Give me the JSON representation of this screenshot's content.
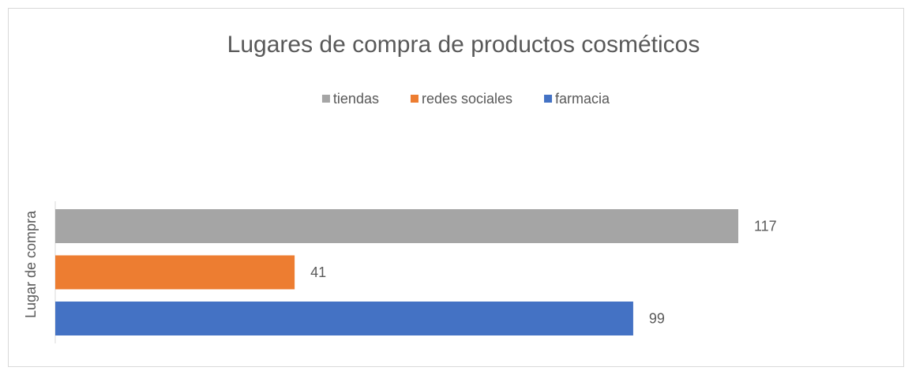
{
  "chart_data": {
    "type": "bar",
    "orientation": "horizontal",
    "title": "Lugares de compra de productos cosméticos",
    "y_label": "Lugar de compra",
    "categories": [
      null
    ],
    "series": [
      {
        "name": "tiendas",
        "color": "#a5a5a5",
        "values": [
          117
        ]
      },
      {
        "name": "redes sociales",
        "color": "#ed7d31",
        "values": [
          41
        ]
      },
      {
        "name": "farmacia",
        "color": "#4472c4",
        "values": [
          99
        ]
      }
    ],
    "legend": "top",
    "grid": false
  }
}
